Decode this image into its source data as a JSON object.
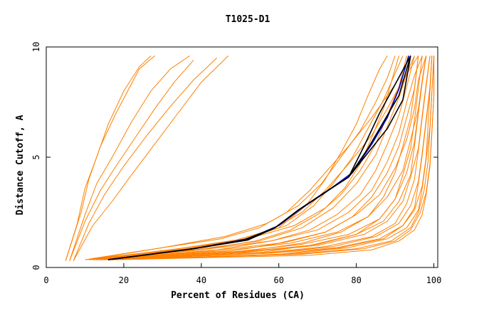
{
  "chart_data": {
    "type": "line",
    "title": "T1025-D1",
    "xlabel": "Percent of Residues (CA)",
    "ylabel": "Distance Cutoff, A",
    "xlim": [
      0,
      101
    ],
    "ylim": [
      0,
      10
    ],
    "xticks": [
      0,
      20,
      40,
      60,
      80,
      100
    ],
    "yticks": [
      0,
      5,
      10
    ],
    "grid": false,
    "colors": {
      "background": "#ffffff",
      "other_models": "#ff8000",
      "highlight_black": "#000000",
      "highlight_blue": "#0000c8"
    },
    "series_groups": {
      "orange_curves": [
        {
          "x": [
            5,
            9,
            11,
            14,
            18,
            21,
            24,
            28
          ],
          "y": [
            0.3,
            2.5,
            4,
            5.5,
            7,
            8,
            9,
            9.6
          ]
        },
        {
          "x": [
            5,
            8,
            10,
            13,
            16,
            20,
            24,
            27
          ],
          "y": [
            0.3,
            2,
            3.6,
            5,
            6.5,
            8,
            9.1,
            9.6
          ]
        },
        {
          "x": [
            6,
            10,
            13,
            17,
            22,
            27,
            32,
            37
          ],
          "y": [
            0.3,
            2.4,
            3.8,
            5,
            6.6,
            8,
            9,
            9.6
          ]
        },
        {
          "x": [
            6,
            10,
            14,
            18,
            23,
            28,
            33,
            38
          ],
          "y": [
            0.3,
            2.1,
            3.5,
            4.6,
            5.9,
            7.2,
            8.4,
            9.4
          ]
        },
        {
          "x": [
            7,
            11,
            15,
            20,
            26,
            32,
            38,
            44
          ],
          "y": [
            0.3,
            2,
            3.3,
            4.6,
            6,
            7.3,
            8.5,
            9.5
          ]
        },
        {
          "x": [
            7,
            12,
            17,
            22,
            28,
            34,
            40,
            47
          ],
          "y": [
            0.3,
            1.9,
            3,
            4.2,
            5.6,
            7,
            8.4,
            9.6
          ]
        },
        {
          "x": [
            10,
            30,
            45,
            55,
            62,
            68,
            73,
            78,
            84,
            90,
            94
          ],
          "y": [
            0.35,
            0.9,
            1.3,
            1.8,
            2.5,
            3.5,
            4.5,
            5.5,
            6.8,
            8.3,
            9.6
          ]
        },
        {
          "x": [
            10,
            32,
            48,
            58,
            66,
            72,
            78,
            84,
            88,
            92,
            96
          ],
          "y": [
            0.35,
            0.8,
            1.2,
            1.7,
            2.5,
            3.5,
            4.7,
            6,
            7.2,
            8.5,
            9.6
          ]
        },
        {
          "x": [
            11,
            35,
            50,
            60,
            67,
            72,
            76,
            80,
            83,
            86,
            88
          ],
          "y": [
            0.35,
            0.8,
            1.2,
            1.8,
            2.8,
            4,
            5.2,
            6.5,
            7.8,
            9,
            9.6
          ]
        },
        {
          "x": [
            11,
            34,
            51,
            62,
            69,
            74,
            79,
            83,
            87,
            90,
            92
          ],
          "y": [
            0.35,
            0.85,
            1.3,
            1.9,
            2.8,
            3.8,
            5,
            6.3,
            7.6,
            8.8,
            9.6
          ]
        },
        {
          "x": [
            12,
            38,
            55,
            66,
            74,
            80,
            85,
            88,
            91,
            93,
            95
          ],
          "y": [
            0.35,
            0.8,
            1.2,
            1.8,
            2.7,
            3.8,
            5.1,
            6.4,
            7.7,
            8.8,
            9.6
          ]
        },
        {
          "x": [
            12,
            40,
            58,
            70,
            78,
            84,
            88,
            91,
            93,
            95,
            97
          ],
          "y": [
            0.35,
            0.8,
            1.2,
            1.7,
            2.5,
            3.5,
            4.8,
            6.1,
            7.5,
            8.7,
            9.6
          ]
        },
        {
          "x": [
            12,
            42,
            60,
            72,
            80,
            86,
            90,
            93,
            95,
            96,
            98
          ],
          "y": [
            0.35,
            0.75,
            1.1,
            1.6,
            2.4,
            3.3,
            4.5,
            5.8,
            7.2,
            8.5,
            9.6
          ]
        },
        {
          "x": [
            13,
            45,
            63,
            75,
            83,
            88,
            92,
            94,
            96,
            97,
            98
          ],
          "y": [
            0.35,
            0.75,
            1.1,
            1.6,
            2.3,
            3.2,
            4.4,
            5.8,
            7.2,
            8.5,
            9.6
          ]
        },
        {
          "x": [
            13,
            48,
            66,
            78,
            86,
            90,
            93,
            95,
            96,
            97,
            98
          ],
          "y": [
            0.35,
            0.7,
            1.05,
            1.5,
            2.2,
            3.1,
            4.3,
            5.7,
            7.1,
            8.4,
            9.6
          ]
        },
        {
          "x": [
            14,
            50,
            68,
            80,
            87,
            91,
            94,
            95,
            96,
            97,
            98
          ],
          "y": [
            0.35,
            0.7,
            1,
            1.5,
            2.1,
            3,
            4.2,
            5.5,
            7,
            8.4,
            9.6
          ]
        },
        {
          "x": [
            14,
            52,
            70,
            82,
            88,
            92,
            94,
            96,
            97,
            98,
            99
          ],
          "y": [
            0.35,
            0.7,
            1,
            1.5,
            2.1,
            3,
            4.1,
            5.4,
            6.9,
            8.3,
            9.6
          ]
        },
        {
          "x": [
            15,
            55,
            72,
            84,
            90,
            93,
            95,
            96,
            97,
            98,
            99
          ],
          "y": [
            0.35,
            0.65,
            0.95,
            1.4,
            2,
            2.9,
            4,
            5.3,
            6.8,
            8.2,
            9.6
          ]
        },
        {
          "x": [
            15,
            57,
            74,
            85,
            91,
            94,
            96,
            97,
            98,
            99,
            99.5
          ],
          "y": [
            0.35,
            0.65,
            0.95,
            1.4,
            2,
            2.8,
            3.9,
            5.2,
            6.7,
            8.2,
            9.6
          ]
        },
        {
          "x": [
            16,
            58,
            75,
            86,
            92,
            95,
            96,
            97,
            98,
            99,
            99.5
          ],
          "y": [
            0.35,
            0.65,
            0.9,
            1.3,
            1.9,
            2.7,
            3.8,
            5.1,
            6.6,
            8.1,
            9.6
          ]
        },
        {
          "x": [
            16,
            60,
            76,
            87,
            92,
            95,
            97,
            98,
            98.5,
            99,
            99.5
          ],
          "y": [
            0.35,
            0.6,
            0.9,
            1.3,
            1.9,
            2.6,
            3.7,
            5,
            6.5,
            8,
            9.6
          ]
        },
        {
          "x": [
            17,
            62,
            78,
            88,
            93,
            96,
            97,
            98,
            99,
            99.5,
            100
          ],
          "y": [
            0.35,
            0.6,
            0.9,
            1.3,
            1.8,
            2.6,
            3.6,
            4.9,
            6.4,
            8,
            9.6
          ]
        },
        {
          "x": [
            17,
            64,
            80,
            89,
            94,
            96,
            97.5,
            98.5,
            99,
            99.5,
            100
          ],
          "y": [
            0.35,
            0.6,
            0.85,
            1.2,
            1.8,
            2.5,
            3.5,
            4.8,
            6.3,
            7.9,
            9.6
          ]
        },
        {
          "x": [
            18,
            66,
            82,
            90,
            94,
            96.5,
            98,
            99,
            99.5,
            100,
            100
          ],
          "y": [
            0.35,
            0.6,
            0.85,
            1.2,
            1.7,
            2.5,
            3.4,
            4.7,
            6.2,
            7.8,
            9.6
          ]
        },
        {
          "x": [
            18,
            68,
            84,
            91,
            95,
            97,
            98,
            99,
            99.5,
            100,
            100
          ],
          "y": [
            0.35,
            0.55,
            0.8,
            1.2,
            1.7,
            2.4,
            3.3,
            4.6,
            6.1,
            7.8,
            9.6
          ]
        },
        {
          "x": [
            12,
            40,
            54,
            63,
            70,
            76,
            81,
            85,
            88,
            91,
            93
          ],
          "y": [
            0.35,
            0.8,
            1.2,
            1.7,
            2.4,
            3.3,
            4.4,
            5.6,
            6.9,
            8.2,
            9.6
          ]
        },
        {
          "x": [
            13,
            44,
            58,
            68,
            75,
            81,
            85,
            88,
            91,
            93,
            95
          ],
          "y": [
            0.35,
            0.8,
            1.2,
            1.7,
            2.4,
            3.3,
            4.4,
            5.6,
            6.9,
            8.2,
            9.6
          ]
        },
        {
          "x": [
            14,
            48,
            62,
            72,
            79,
            84,
            88,
            91,
            93,
            95,
            96
          ],
          "y": [
            0.35,
            0.75,
            1.15,
            1.6,
            2.3,
            3.2,
            4.3,
            5.5,
            6.8,
            8.1,
            9.6
          ]
        },
        {
          "x": [
            15,
            52,
            66,
            76,
            83,
            87,
            90,
            92,
            94,
            95,
            96
          ],
          "y": [
            0.35,
            0.75,
            1.1,
            1.6,
            2.3,
            3.2,
            4.3,
            5.5,
            6.8,
            8.1,
            9.6
          ]
        },
        {
          "x": [
            16,
            56,
            70,
            80,
            86,
            90,
            92,
            94,
            95,
            96,
            97
          ],
          "y": [
            0.35,
            0.7,
            1.05,
            1.5,
            2.2,
            3.1,
            4.2,
            5.4,
            6.7,
            8.1,
            9.6
          ]
        },
        {
          "x": [
            12,
            36,
            52,
            64,
            72,
            77,
            81,
            84,
            87,
            89,
            91
          ],
          "y": [
            0.35,
            0.85,
            1.3,
            1.9,
            2.7,
            3.6,
            4.7,
            5.9,
            7.2,
            8.4,
            9.6
          ]
        },
        {
          "x": [
            11,
            30,
            46,
            57,
            65,
            71,
            76,
            81,
            85,
            88,
            90
          ],
          "y": [
            0.35,
            0.9,
            1.4,
            2,
            2.8,
            3.8,
            5,
            6.2,
            7.5,
            8.6,
            9.6
          ]
        }
      ],
      "highlighted_curves": [
        {
          "color": "blue",
          "x": [
            16,
            38,
            52,
            60,
            66,
            72,
            79,
            84,
            88,
            91,
            93.5
          ],
          "y": [
            0.35,
            0.85,
            1.3,
            1.9,
            2.7,
            3.4,
            4.3,
            5.6,
            6.8,
            8.1,
            9.6
          ]
        },
        {
          "color": "black",
          "x": [
            16,
            38,
            52,
            59,
            65,
            71,
            78,
            83,
            87,
            91,
            94
          ],
          "y": [
            0.35,
            0.85,
            1.25,
            1.8,
            2.6,
            3.3,
            4.1,
            5.4,
            6.6,
            7.8,
            9.6
          ]
        },
        {
          "color": "black",
          "x": [
            16,
            38,
            52,
            59,
            65,
            71,
            78,
            82,
            86,
            90,
            94
          ],
          "y": [
            0.35,
            0.85,
            1.25,
            1.8,
            2.6,
            3.3,
            4.1,
            5.5,
            7,
            8.3,
            9.6
          ]
        },
        {
          "color": "black",
          "x": [
            16,
            38,
            51,
            59,
            65,
            71,
            78,
            83,
            88,
            92,
            94
          ],
          "y": [
            0.35,
            0.85,
            1.25,
            1.8,
            2.6,
            3.3,
            4.1,
            5.2,
            6.3,
            7.6,
            9.6
          ]
        }
      ]
    }
  }
}
